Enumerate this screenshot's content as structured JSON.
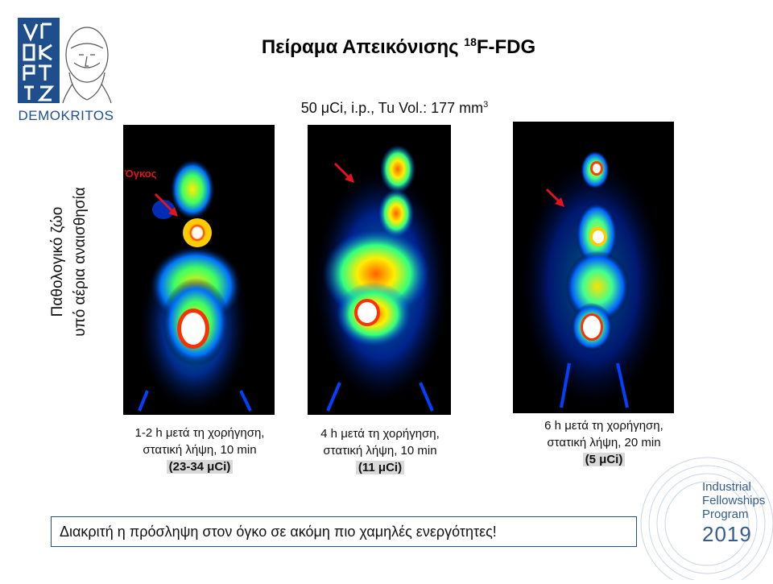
{
  "logo": {
    "text": "DEMOKRITOS",
    "color": "#1f4e8c"
  },
  "title": {
    "main": "Πείραμα Απεικόνισης ",
    "superscript": "18",
    "suffix": "F-FDG"
  },
  "subtitle": {
    "main": "50 μCi, i.p., Tu Vol.: 177 mm",
    "superscript": "3"
  },
  "side_label": {
    "line1": "Παθολογικό ζώο",
    "line2": "υπό αέρια αναισθησία"
  },
  "tumor_label": "Όγκος",
  "captions": [
    {
      "line1": "1-2 h μετά τη χορήγηση,",
      "line2": "στατική λήψη, 10 min",
      "dose": "(23-34 μCi)"
    },
    {
      "line1": "4 h μετά τη χορήγηση,",
      "line2": "στατική λήψη, 10 min",
      "dose": "(11 μCi)"
    },
    {
      "line1": "6 h μετά τη χορήγηση,",
      "line2": "στατική λήψη, 20 min",
      "dose": "(5 μCi)"
    }
  ],
  "conclusion": "Διακριτή η πρόσληψη στον όγκο σε ακόμη πιο χαμηλές ενεργότητες!",
  "badge": {
    "line1": "Industrial",
    "line2": "Fellowships",
    "line3": "Program",
    "year": "2019"
  },
  "colors": {
    "arrow": "#e0141e",
    "accent": "#1f4e8c"
  }
}
